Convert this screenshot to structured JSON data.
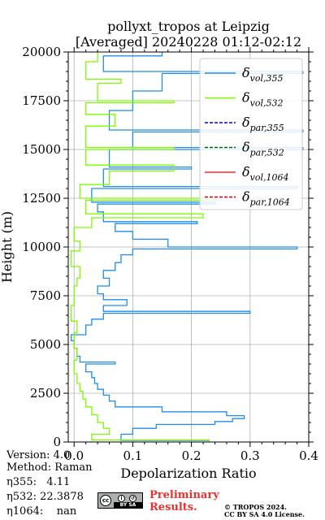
{
  "chart_data": {
    "type": "line",
    "title": "pollyxt_tropos at Leipzig",
    "subtitle": "[Averaged] 20240228 01:12-02:12",
    "xlabel": "Depolarization Ratio",
    "ylabel": "Height (m)",
    "xlim": [
      -0.01,
      0.4
    ],
    "ylim": [
      0,
      20000
    ],
    "xticks": [
      "0.0",
      "0.1",
      "0.2",
      "0.3",
      "0.4"
    ],
    "yticks": [
      "0",
      "2500",
      "5000",
      "7500",
      "10000",
      "12500",
      "15000",
      "17500",
      "20000"
    ],
    "grid": true,
    "legend_position": "top-right",
    "series": [
      {
        "name": "vol,355",
        "color": "#1f8fe8",
        "points": [
          [
            0.23,
            0
          ],
          [
            0.23,
            80
          ],
          [
            0.08,
            80
          ],
          [
            0.08,
            400
          ],
          [
            0.1,
            400
          ],
          [
            0.1,
            700
          ],
          [
            0.14,
            700
          ],
          [
            0.14,
            900
          ],
          [
            0.24,
            900
          ],
          [
            0.24,
            1050
          ],
          [
            0.27,
            1050
          ],
          [
            0.27,
            1200
          ],
          [
            0.29,
            1200
          ],
          [
            0.29,
            1350
          ],
          [
            0.26,
            1350
          ],
          [
            0.26,
            1550
          ],
          [
            0.15,
            1550
          ],
          [
            0.15,
            1800
          ],
          [
            0.07,
            1800
          ],
          [
            0.07,
            2100
          ],
          [
            0.06,
            2100
          ],
          [
            0.06,
            2400
          ],
          [
            0.05,
            2400
          ],
          [
            0.05,
            2700
          ],
          [
            0.04,
            2700
          ],
          [
            0.04,
            3000
          ],
          [
            0.035,
            3000
          ],
          [
            0.035,
            3300
          ],
          [
            0.03,
            3300
          ],
          [
            0.03,
            3600
          ],
          [
            0.02,
            3600
          ],
          [
            0.02,
            4000
          ],
          [
            0.07,
            4000
          ],
          [
            0.07,
            4100
          ],
          [
            0.01,
            4100
          ],
          [
            0.01,
            4400
          ],
          [
            0.005,
            4400
          ],
          [
            0.005,
            4800
          ],
          [
            0.0,
            4800
          ],
          [
            0.0,
            5200
          ],
          [
            -0.005,
            5200
          ],
          [
            -0.005,
            5500
          ],
          [
            0.02,
            5500
          ],
          [
            0.02,
            6000
          ],
          [
            0.03,
            6000
          ],
          [
            0.03,
            6300
          ],
          [
            0.05,
            6300
          ],
          [
            0.05,
            6600
          ],
          [
            0.3,
            6600
          ],
          [
            0.3,
            6700
          ],
          [
            0.05,
            6700
          ],
          [
            0.05,
            7000
          ],
          [
            0.09,
            7000
          ],
          [
            0.09,
            7300
          ],
          [
            0.05,
            7300
          ],
          [
            0.05,
            7600
          ],
          [
            0.04,
            7600
          ],
          [
            0.04,
            8000
          ],
          [
            0.06,
            8000
          ],
          [
            0.06,
            8400
          ],
          [
            0.05,
            8400
          ],
          [
            0.05,
            8800
          ],
          [
            0.07,
            8800
          ],
          [
            0.07,
            9200
          ],
          [
            0.08,
            9200
          ],
          [
            0.08,
            9600
          ],
          [
            0.1,
            9600
          ],
          [
            0.1,
            9900
          ],
          [
            0.38,
            9900
          ],
          [
            0.38,
            10000
          ],
          [
            0.16,
            10000
          ],
          [
            0.16,
            10400
          ],
          [
            0.1,
            10400
          ],
          [
            0.1,
            10800
          ],
          [
            0.07,
            10800
          ],
          [
            0.07,
            11200
          ],
          [
            0.21,
            11200
          ],
          [
            0.21,
            11300
          ],
          [
            0.05,
            11300
          ],
          [
            0.05,
            11800
          ],
          [
            0.04,
            11800
          ],
          [
            0.04,
            12200
          ],
          [
            0.24,
            12200
          ],
          [
            0.24,
            12300
          ],
          [
            0.03,
            12300
          ],
          [
            0.03,
            13000
          ],
          [
            0.38,
            13000
          ],
          [
            0.38,
            13100
          ],
          [
            0.05,
            13100
          ],
          [
            0.05,
            14000
          ],
          [
            0.2,
            14000
          ],
          [
            0.2,
            14100
          ],
          [
            0.06,
            14100
          ],
          [
            0.06,
            15000
          ],
          [
            0.39,
            15000
          ],
          [
            0.39,
            15100
          ],
          [
            0.1,
            15100
          ],
          [
            0.1,
            15900
          ],
          [
            0.39,
            15900
          ],
          [
            0.39,
            16000
          ],
          [
            0.06,
            16000
          ],
          [
            0.06,
            17000
          ],
          [
            0.1,
            17000
          ],
          [
            0.1,
            18000
          ],
          [
            0.15,
            18000
          ],
          [
            0.15,
            18900
          ],
          [
            0.39,
            18900
          ],
          [
            0.39,
            19000
          ],
          [
            0.05,
            19000
          ],
          [
            0.05,
            19800
          ],
          [
            0.15,
            19800
          ],
          [
            0.15,
            20000
          ]
        ]
      },
      {
        "name": "vol,532",
        "color": "#7cfc00",
        "points": [
          [
            0.23,
            0
          ],
          [
            0.23,
            100
          ],
          [
            0.03,
            100
          ],
          [
            0.03,
            400
          ],
          [
            0.06,
            400
          ],
          [
            0.06,
            700
          ],
          [
            0.05,
            700
          ],
          [
            0.05,
            1000
          ],
          [
            0.04,
            1000
          ],
          [
            0.04,
            1400
          ],
          [
            0.03,
            1400
          ],
          [
            0.03,
            1800
          ],
          [
            0.02,
            1800
          ],
          [
            0.02,
            2200
          ],
          [
            0.015,
            2200
          ],
          [
            0.015,
            2600
          ],
          [
            0.01,
            2600
          ],
          [
            0.01,
            3000
          ],
          [
            0.005,
            3000
          ],
          [
            0.005,
            3500
          ],
          [
            0.0,
            3500
          ],
          [
            0.0,
            4200
          ],
          [
            0.005,
            4200
          ],
          [
            0.005,
            4800
          ],
          [
            0.0,
            4800
          ],
          [
            0.0,
            5600
          ],
          [
            0.005,
            5600
          ],
          [
            0.005,
            6200
          ],
          [
            -0.005,
            6200
          ],
          [
            -0.005,
            7000
          ],
          [
            0.0,
            7000
          ],
          [
            0.0,
            8000
          ],
          [
            0.005,
            8000
          ],
          [
            0.005,
            8400
          ],
          [
            0.01,
            8400
          ],
          [
            0.01,
            9000
          ],
          [
            -0.005,
            9000
          ],
          [
            -0.005,
            9800
          ],
          [
            0.01,
            9800
          ],
          [
            0.01,
            10300
          ],
          [
            0.0,
            10300
          ],
          [
            0.0,
            11000
          ],
          [
            0.03,
            11000
          ],
          [
            0.03,
            11500
          ],
          [
            0.22,
            11500
          ],
          [
            0.22,
            11700
          ],
          [
            0.02,
            11700
          ],
          [
            0.02,
            12400
          ],
          [
            0.24,
            12400
          ],
          [
            0.24,
            12500
          ],
          [
            0.01,
            12500
          ],
          [
            0.01,
            13200
          ],
          [
            0.06,
            13200
          ],
          [
            0.06,
            13900
          ],
          [
            0.17,
            13900
          ],
          [
            0.17,
            14200
          ],
          [
            0.02,
            14200
          ],
          [
            0.02,
            15000
          ],
          [
            0.17,
            15000
          ],
          [
            0.17,
            15100
          ],
          [
            0.02,
            15100
          ],
          [
            0.02,
            16200
          ],
          [
            0.07,
            16200
          ],
          [
            0.07,
            16800
          ],
          [
            0.02,
            16800
          ],
          [
            0.02,
            17400
          ],
          [
            0.17,
            17400
          ],
          [
            0.17,
            17500
          ],
          [
            0.04,
            17500
          ],
          [
            0.04,
            18400
          ],
          [
            0.08,
            18400
          ],
          [
            0.08,
            18600
          ],
          [
            0.02,
            18600
          ],
          [
            0.02,
            19500
          ],
          [
            0.04,
            19500
          ],
          [
            0.04,
            20000
          ]
        ]
      },
      {
        "name": "par,355",
        "color": "#0000cc",
        "points": []
      },
      {
        "name": "par,532",
        "color": "#006400",
        "points": []
      },
      {
        "name": "vol,1064",
        "color": "#ff2a2a",
        "points": []
      },
      {
        "name": "par,1064",
        "color": "#cc0000",
        "points": []
      }
    ]
  },
  "info": {
    "version": "Version: 4.0",
    "method": "Method: Raman",
    "eta355": "η355:   4.11",
    "eta532": "η532: 22.3878",
    "eta1064": "η1064:    nan"
  },
  "footer": {
    "preliminary_line1": "Preliminary",
    "preliminary_line2": "Results.",
    "copyright_line1": "© TROPOS 2024.",
    "copyright_line2": "CC BY SA 4.0 License.",
    "license_badge": "BY  SA"
  }
}
